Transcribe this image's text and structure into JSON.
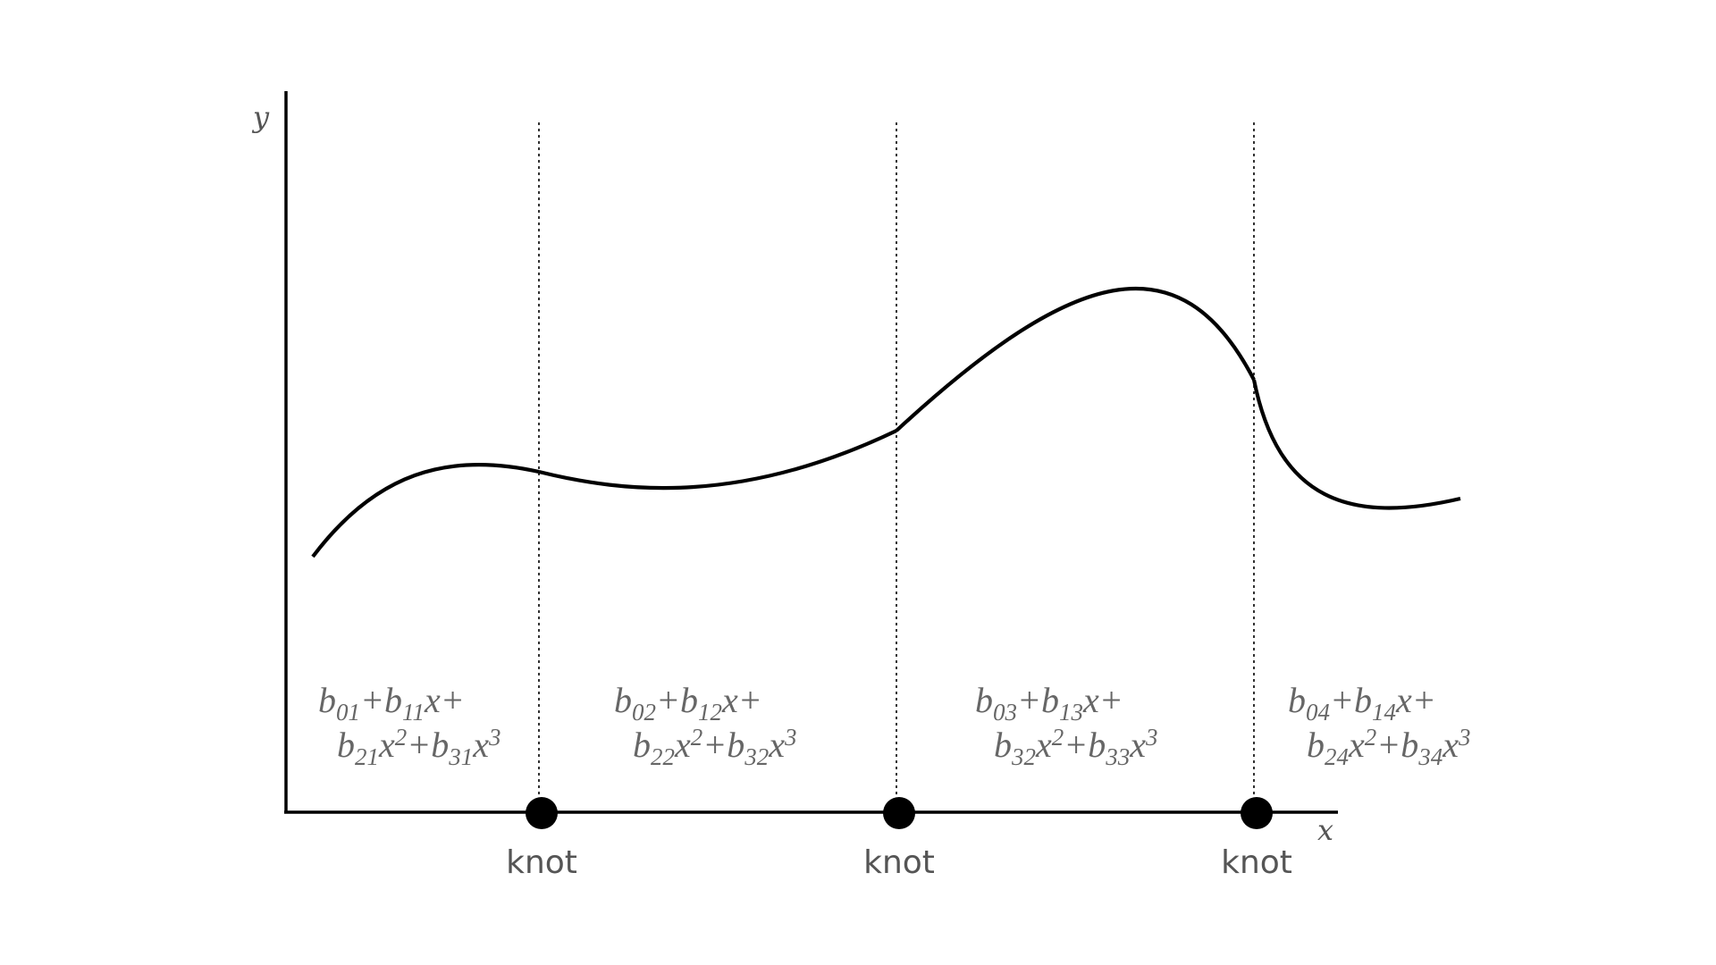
{
  "axes": {
    "x_label": "x",
    "y_label": "y"
  },
  "knots": [
    {
      "label": "knot"
    },
    {
      "label": "knot"
    },
    {
      "label": "knot"
    }
  ],
  "segments": [
    {
      "line1": "b01+b11x+",
      "line2": "b21x2+b31x3",
      "t1": [
        [
          "b",
          ""
        ],
        [
          "01",
          "sub"
        ],
        [
          "+b",
          ""
        ],
        [
          "11",
          "sub"
        ],
        [
          "x+",
          ""
        ]
      ],
      "t2": [
        [
          "b",
          ""
        ],
        [
          "21",
          "sub"
        ],
        [
          "x",
          ""
        ],
        [
          "2",
          "sup"
        ],
        [
          "+b",
          ""
        ],
        [
          "31",
          "sub"
        ],
        [
          "x",
          ""
        ],
        [
          "3",
          "sup"
        ]
      ]
    },
    {
      "line1": "b02+b12x+",
      "line2": "b22x2+b32x3",
      "t1": [
        [
          "b",
          ""
        ],
        [
          "02",
          "sub"
        ],
        [
          "+b",
          ""
        ],
        [
          "12",
          "sub"
        ],
        [
          "x+",
          ""
        ]
      ],
      "t2": [
        [
          "b",
          ""
        ],
        [
          "22",
          "sub"
        ],
        [
          "x",
          ""
        ],
        [
          "2",
          "sup"
        ],
        [
          "+b",
          ""
        ],
        [
          "32",
          "sub"
        ],
        [
          "x",
          ""
        ],
        [
          "3",
          "sup"
        ]
      ]
    },
    {
      "line1": "b03+b13x+",
      "line2": "b32x2+b33x3",
      "t1": [
        [
          "b",
          ""
        ],
        [
          "03",
          "sub"
        ],
        [
          "+b",
          ""
        ],
        [
          "13",
          "sub"
        ],
        [
          "x+",
          ""
        ]
      ],
      "t2": [
        [
          "b",
          ""
        ],
        [
          "32",
          "sub"
        ],
        [
          "x",
          ""
        ],
        [
          "2",
          "sup"
        ],
        [
          "+b",
          ""
        ],
        [
          "33",
          "sub"
        ],
        [
          "x",
          ""
        ],
        [
          "3",
          "sup"
        ]
      ]
    },
    {
      "line1": "b04+b14x+",
      "line2": "b24x2+b34x3",
      "t1": [
        [
          "b",
          ""
        ],
        [
          "04",
          "sub"
        ],
        [
          "+b",
          ""
        ],
        [
          "14",
          "sub"
        ],
        [
          "x+",
          ""
        ]
      ],
      "t2": [
        [
          "b",
          ""
        ],
        [
          "24",
          "sub"
        ],
        [
          "x",
          ""
        ],
        [
          "2",
          "sup"
        ],
        [
          "+b",
          ""
        ],
        [
          "34",
          "sub"
        ],
        [
          "x",
          ""
        ],
        [
          "3",
          "sup"
        ]
      ]
    }
  ],
  "colors": {
    "curve": "#000000",
    "axis": "#000000",
    "knot_marker": "#000000",
    "text": "#555555"
  }
}
